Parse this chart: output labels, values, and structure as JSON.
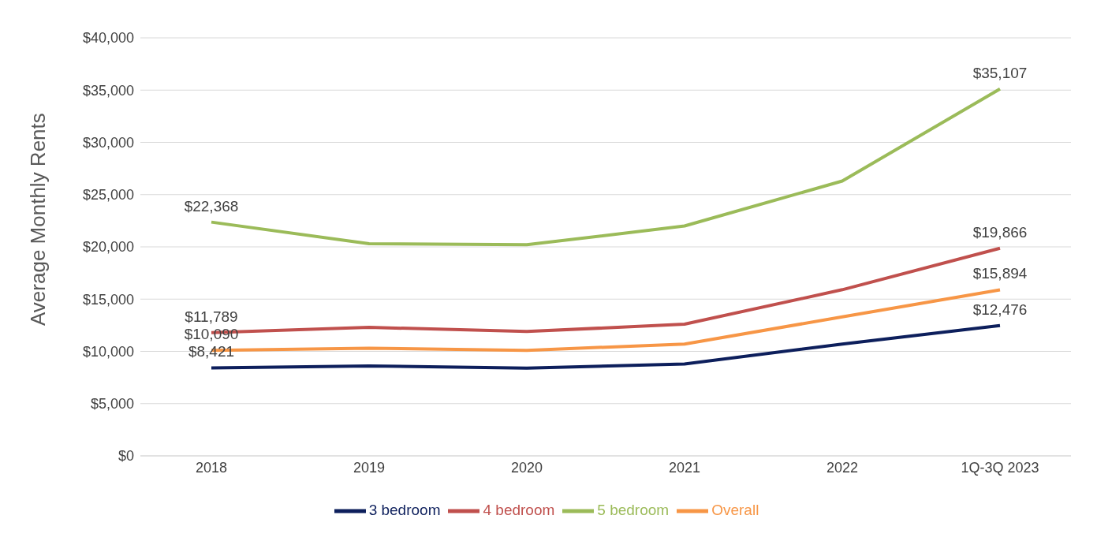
{
  "chart_data": {
    "type": "line",
    "ylabel": "Average Monthly Rents",
    "categories": [
      "2018",
      "2019",
      "2020",
      "2021",
      "2022",
      "1Q-3Q 2023"
    ],
    "series": [
      {
        "name": "3 bedroom",
        "color": "#0d1f5c",
        "values": [
          8421,
          8600,
          8400,
          8800,
          10700,
          12476
        ],
        "value_labels": [
          "$8,421",
          null,
          null,
          null,
          null,
          "$12,476"
        ]
      },
      {
        "name": "4 bedroom",
        "color": "#c0504d",
        "values": [
          11789,
          12300,
          11900,
          12600,
          15900,
          19866
        ],
        "value_labels": [
          "$11,789",
          null,
          null,
          null,
          null,
          "$19,866"
        ]
      },
      {
        "name": "5 bedroom",
        "color": "#9bbb59",
        "values": [
          22368,
          20300,
          20200,
          22000,
          26300,
          35107
        ],
        "value_labels": [
          "$22,368",
          null,
          null,
          null,
          null,
          "$35,107"
        ]
      },
      {
        "name": "Overall",
        "color": "#f79646",
        "values": [
          10090,
          10300,
          10100,
          10700,
          13300,
          15894
        ],
        "value_labels": [
          "$10,090",
          null,
          null,
          null,
          null,
          "$15,894"
        ]
      }
    ],
    "ylim": [
      0,
      40000
    ],
    "yticks": [
      {
        "value": 0,
        "label": "$0"
      },
      {
        "value": 5000,
        "label": "$5,000"
      },
      {
        "value": 10000,
        "label": "$10,000"
      },
      {
        "value": 15000,
        "label": "$15,000"
      },
      {
        "value": 20000,
        "label": "$20,000"
      },
      {
        "value": 25000,
        "label": "$25,000"
      },
      {
        "value": 30000,
        "label": "$30,000"
      },
      {
        "value": 35000,
        "label": "$35,000"
      },
      {
        "value": 40000,
        "label": "$40,000"
      }
    ],
    "grid": "y",
    "legend": "bottom",
    "marker": "none",
    "line_style": "solid"
  }
}
